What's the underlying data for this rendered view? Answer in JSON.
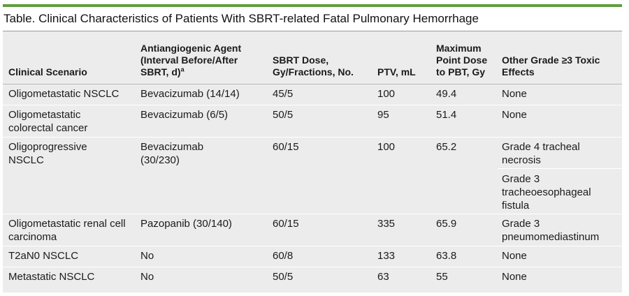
{
  "title": "Table. Clinical Characteristics of Patients With SBRT-related Fatal Pulmonary Hemorrhage",
  "colors": {
    "accent_bar": "#5f9e3f",
    "table_bg": "#ececec",
    "divider": "#ffffff"
  },
  "header": {
    "scenario": "Clinical Scenario",
    "agent": "Antiangiogenic Agent (Interval Before/After SBRT, d)",
    "agent_footnote": "a",
    "dose": "SBRT Dose, Gy/Fractions, No.",
    "ptv": "PTV, mL",
    "max_dose": "Maximum Point Dose to PBT, Gy",
    "toxic": "Other Grade ≥3 Toxic Effects"
  },
  "rows": [
    {
      "scenario": "Oligometastatic NSCLC",
      "agent": "Bevacizumab (14/14)",
      "dose": "45/5",
      "ptv": "100",
      "max_dose": "49.4",
      "toxic": [
        "None"
      ]
    },
    {
      "scenario": "Oligometastatic colorectal cancer",
      "agent": "Bevacizumab (6/5)",
      "dose": "50/5",
      "ptv": "95",
      "max_dose": "51.4",
      "toxic": [
        "None"
      ]
    },
    {
      "scenario": "Oligoprogressive NSCLC",
      "agent": "Bevacizumab (30/230)",
      "dose": "60/15",
      "ptv": "100",
      "max_dose": "65.2",
      "toxic": [
        "Grade 4 tracheal necrosis",
        "Grade 3 tracheoesophageal fistula"
      ]
    },
    {
      "scenario": "Oligometastatic renal cell carcinoma",
      "agent": "Pazopanib (30/140)",
      "dose": "60/15",
      "ptv": "335",
      "max_dose": "65.9",
      "toxic": [
        "Grade 3 pneumomediastinum"
      ]
    },
    {
      "scenario": "T2aN0 NSCLC",
      "agent": "No",
      "dose": "60/8",
      "ptv": "133",
      "max_dose": "63.8",
      "toxic": [
        "None"
      ]
    },
    {
      "scenario": "Metastatic NSCLC",
      "agent": "No",
      "dose": "50/5",
      "ptv": "63",
      "max_dose": "55",
      "toxic": [
        "None"
      ]
    }
  ]
}
